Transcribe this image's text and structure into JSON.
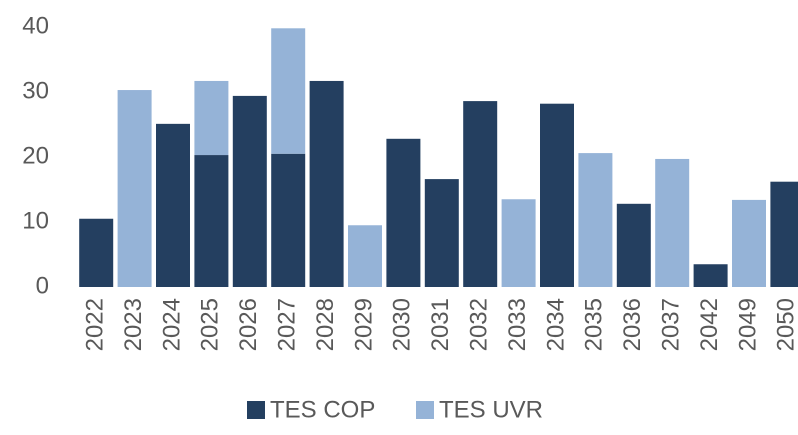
{
  "chart_data": {
    "type": "stacked_bar",
    "categories": [
      "2022",
      "2023",
      "2024",
      "2025",
      "2026",
      "2027",
      "2028",
      "2029",
      "2030",
      "2031",
      "2032",
      "2033",
      "2034",
      "2035",
      "2036",
      "2037",
      "2042",
      "2049",
      "2050"
    ],
    "series": [
      {
        "name": "TES COP",
        "color": "#243f60",
        "values": [
          10.5,
          null,
          25.1,
          20.3,
          29.4,
          20.5,
          31.7,
          null,
          22.8,
          16.6,
          28.6,
          null,
          28.2,
          null,
          12.8,
          null,
          3.5,
          null,
          16.2
        ]
      },
      {
        "name": "TES UVR",
        "color": "#95b3d7",
        "values": [
          null,
          30.3,
          null,
          11.4,
          null,
          19.3,
          null,
          9.5,
          null,
          null,
          null,
          13.5,
          null,
          20.6,
          null,
          19.7,
          null,
          13.4,
          null
        ]
      }
    ],
    "ylim": [
      0,
      40
    ],
    "yticks": [
      0,
      10,
      20,
      30,
      40
    ],
    "grid": false,
    "legend": "bottom"
  }
}
